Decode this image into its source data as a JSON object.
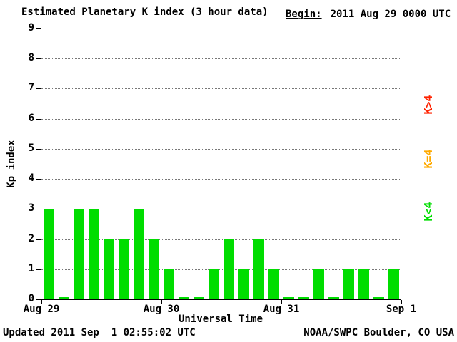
{
  "header": {
    "title": "Estimated Planetary K index (3 hour data)",
    "begin_label": "Begin:",
    "begin_value": "2011 Aug 29 0000 UTC"
  },
  "axes": {
    "y_label": "Kp index",
    "x_label": "Universal Time"
  },
  "legend": {
    "items": [
      {
        "label": "K>4",
        "color": "#ff2200"
      },
      {
        "label": "K=4",
        "color": "#ffaa00"
      },
      {
        "label": "K<4",
        "color": "#00dd00"
      }
    ]
  },
  "footer": {
    "updated": "Updated 2011 Sep  1 02:55:02 UTC",
    "source": "NOAA/SWPC Boulder, CO USA"
  },
  "chart_data": {
    "type": "bar",
    "title": "Estimated Planetary K index (3 hour data)",
    "begin": "2011 Aug 29 0000 UTC",
    "xlabel": "Universal Time",
    "ylabel": "Kp index",
    "ylim": [
      0,
      9
    ],
    "y_ticks": [
      0,
      1,
      2,
      3,
      4,
      5,
      6,
      7,
      8,
      9
    ],
    "x_tick_labels": [
      "Aug 29",
      "Aug 30",
      "Aug 31",
      "Sep 1"
    ],
    "bar_interval_hours": 3,
    "bar_color": "#00dd00",
    "grid": "dotted-horizontal",
    "values": [
      3,
      0,
      3,
      3,
      2,
      2,
      3,
      2,
      1,
      0,
      0,
      1,
      2,
      1,
      2,
      1,
      0,
      0,
      1,
      0,
      1,
      1,
      0,
      1
    ]
  }
}
